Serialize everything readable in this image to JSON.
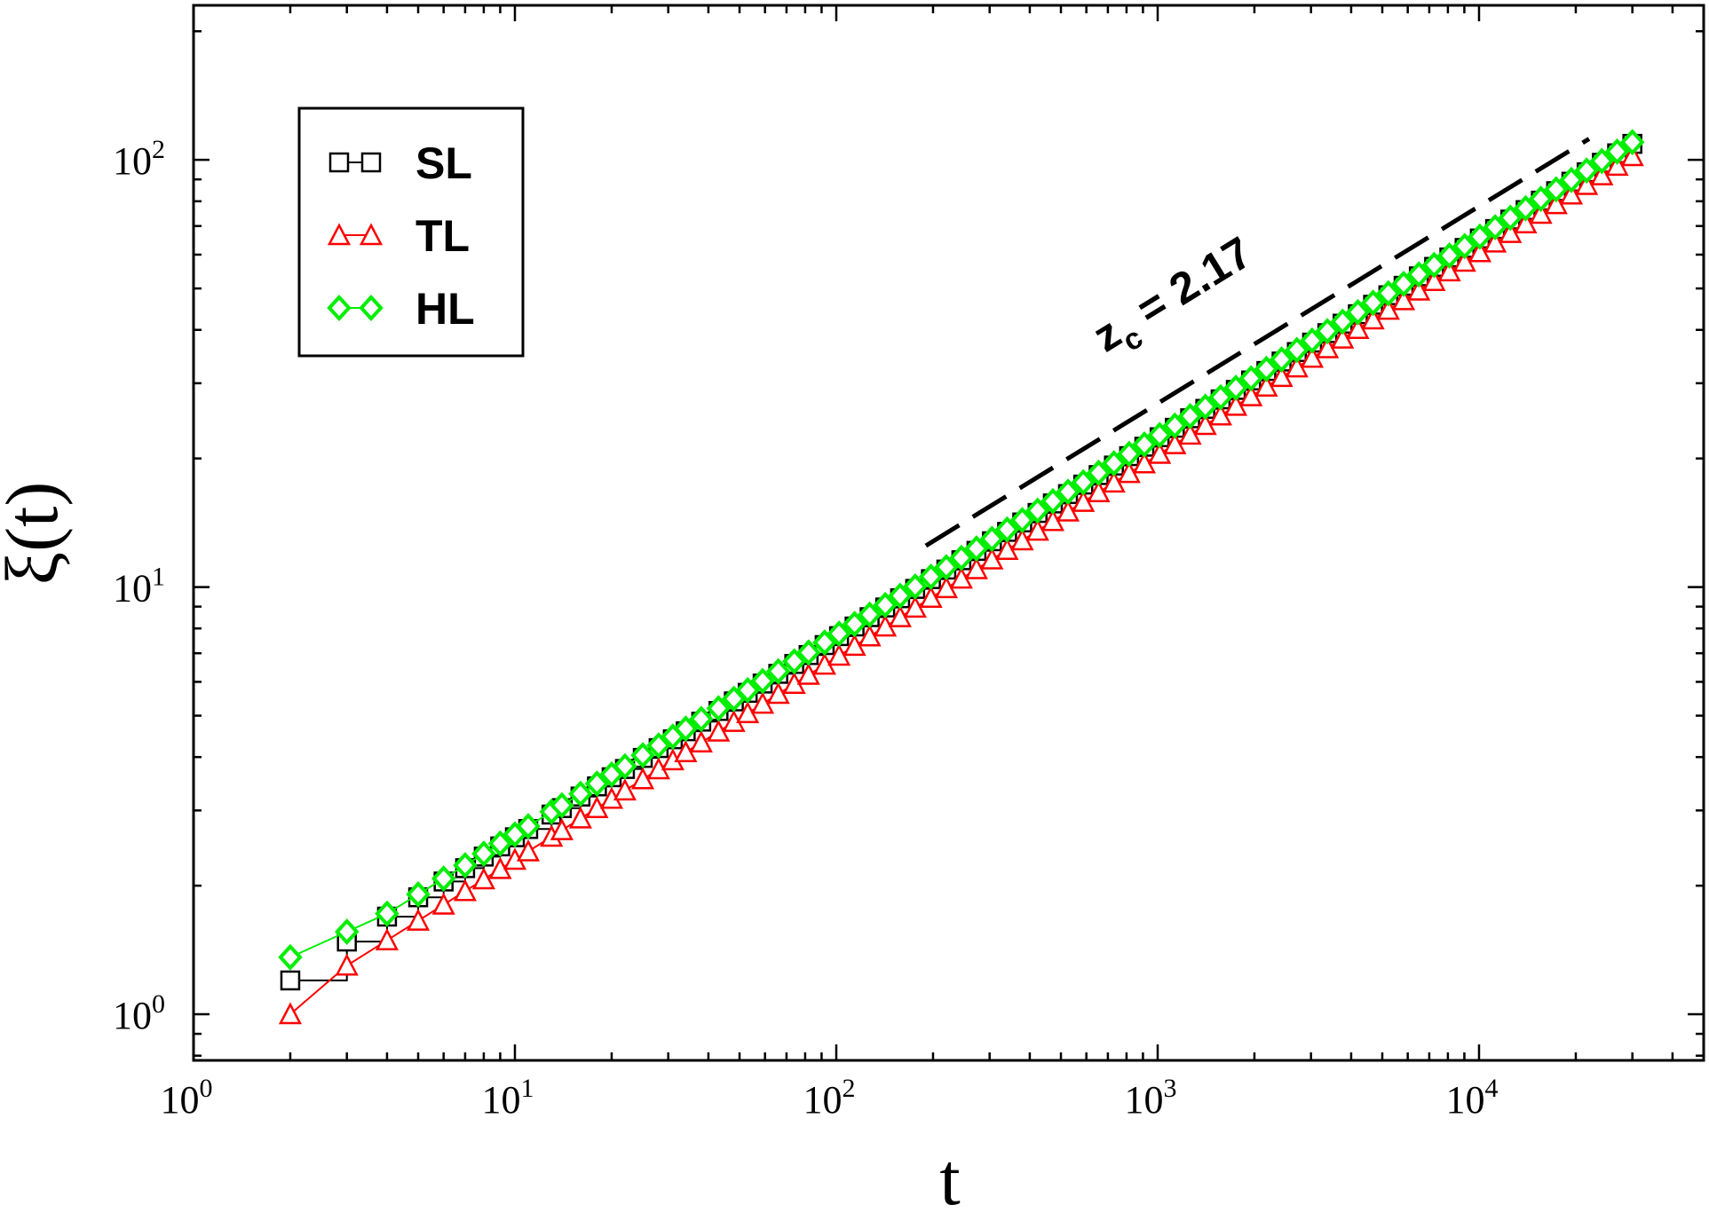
{
  "chart_data": {
    "type": "line",
    "x_scale": "log",
    "y_scale": "log",
    "xlim": [
      1,
      50000
    ],
    "ylim": [
      0.78,
      230
    ],
    "xlabel": "t",
    "ylabel": "ξ(t)",
    "x_ticks": [
      {
        "value": 1,
        "base": "10",
        "exp": "0"
      },
      {
        "value": 10,
        "base": "10",
        "exp": "1"
      },
      {
        "value": 100,
        "base": "10",
        "exp": "2"
      },
      {
        "value": 1000,
        "base": "10",
        "exp": "3"
      },
      {
        "value": 10000,
        "base": "10",
        "exp": "4"
      }
    ],
    "y_ticks": [
      {
        "value": 1,
        "base": "10",
        "exp": "0"
      },
      {
        "value": 10,
        "base": "10",
        "exp": "1"
      },
      {
        "value": 100,
        "base": "10",
        "exp": "2"
      }
    ],
    "legend_position": "top-left",
    "series": [
      {
        "name": "SL",
        "color": "#000000",
        "marker": "square",
        "connect": "step",
        "t_range": [
          2,
          30000
        ],
        "points": [
          [
            2,
            1.2
          ],
          [
            3,
            1.48
          ],
          [
            30000,
            109
          ]
        ]
      },
      {
        "name": "TL",
        "color": "#ff0000",
        "marker": "triangle",
        "connect": "line",
        "t_range": [
          2,
          30000
        ],
        "points": [
          [
            2,
            1.0
          ],
          [
            3,
            1.3
          ],
          [
            30000,
            102
          ]
        ]
      },
      {
        "name": "HL",
        "color": "#00ee00",
        "marker": "diamond",
        "connect": "line",
        "t_range": [
          2,
          30000
        ],
        "points": [
          [
            2,
            1.36
          ],
          [
            4,
            1.72
          ],
          [
            30000,
            110
          ]
        ]
      }
    ],
    "reference_line": {
      "style": "dashed",
      "color": "#000000",
      "from": [
        190,
        12.5
      ],
      "to": [
        22000,
        112
      ],
      "label_prefix": "z",
      "label_sub": "c",
      "label_value": " = 2.17"
    }
  }
}
